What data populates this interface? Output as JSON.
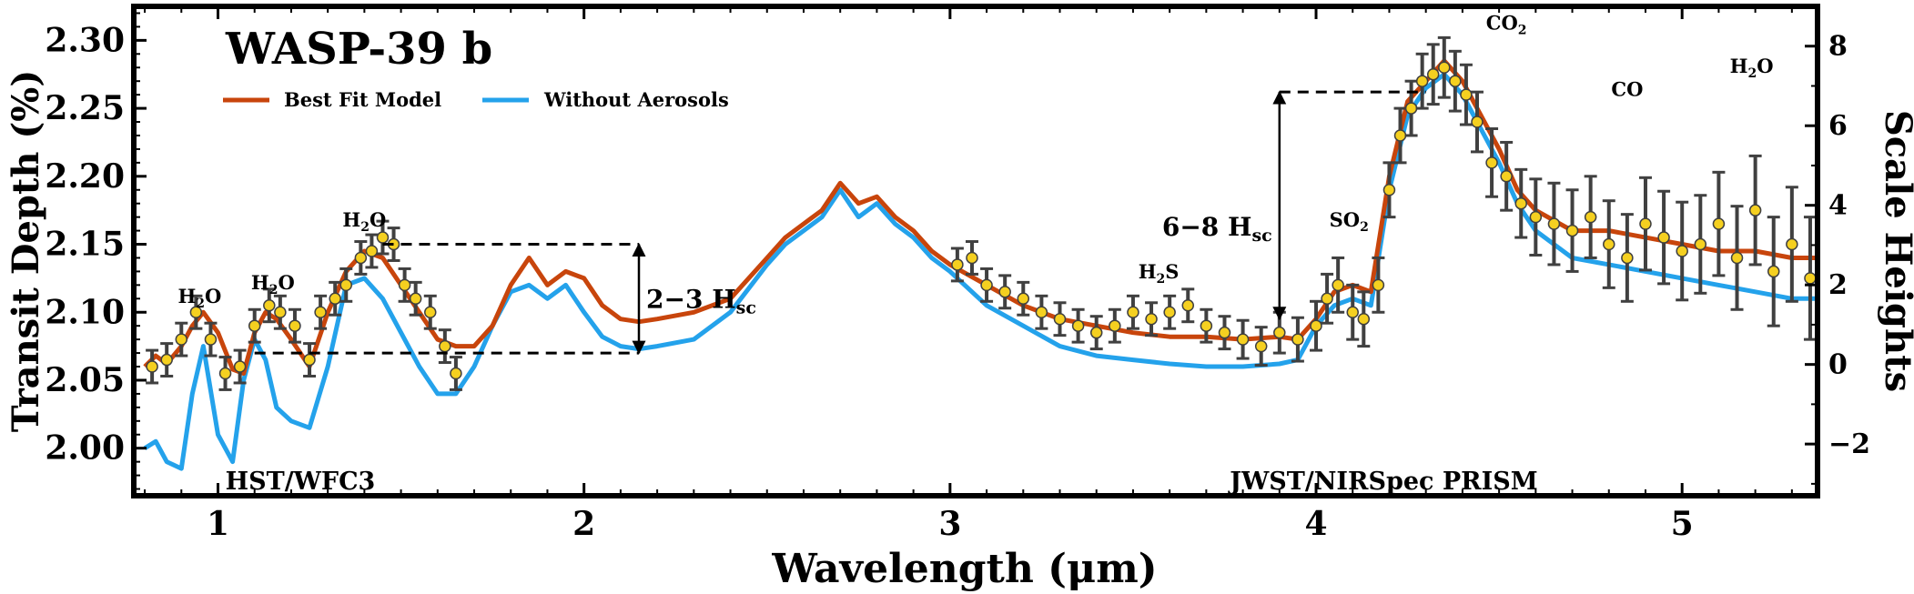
{
  "chart_data": {
    "type": "line",
    "title": "WASP-39 b",
    "xlabel": "Wavelength (μm)",
    "ylabel": "Transit Depth (%)",
    "y2label": "Scale Heights",
    "xlim": [
      0.77,
      5.37
    ],
    "ylim": [
      1.965,
      2.325
    ],
    "y2lim": [
      -3.3,
      9.0
    ],
    "x_ticks": [
      1,
      2,
      3,
      4,
      5
    ],
    "y_ticks": [
      2.0,
      2.05,
      2.1,
      2.15,
      2.2,
      2.25,
      2.3
    ],
    "y_tick_labels": [
      "2.00",
      "2.05",
      "2.10",
      "2.15",
      "2.20",
      "2.25",
      "2.30"
    ],
    "y2_ticks": [
      -2,
      0,
      2,
      4,
      6,
      8
    ],
    "y2_tick_labels": [
      "−2",
      "0",
      "2",
      "4",
      "6",
      "8"
    ],
    "legend": {
      "placement": "top-left"
    },
    "colors": {
      "best_fit": "#c8450c",
      "no_aerosols": "#24a2eb",
      "points": "#f5d020",
      "errorbars": "#404040"
    },
    "series": [
      {
        "name": "Best Fit Model",
        "x": [
          0.8,
          0.83,
          0.86,
          0.9,
          0.93,
          0.96,
          1.0,
          1.04,
          1.07,
          1.1,
          1.13,
          1.16,
          1.2,
          1.25,
          1.3,
          1.35,
          1.4,
          1.45,
          1.5,
          1.55,
          1.6,
          1.65,
          1.7,
          1.75,
          1.8,
          1.85,
          1.9,
          1.95,
          2.0,
          2.05,
          2.1,
          2.15,
          2.2,
          2.3,
          2.4,
          2.5,
          2.55,
          2.6,
          2.65,
          2.7,
          2.75,
          2.8,
          2.85,
          2.9,
          2.95,
          3.0,
          3.1,
          3.2,
          3.3,
          3.4,
          3.5,
          3.6,
          3.7,
          3.8,
          3.9,
          3.95,
          4.0,
          4.05,
          4.1,
          4.15,
          4.2,
          4.25,
          4.3,
          4.35,
          4.4,
          4.45,
          4.5,
          4.55,
          4.6,
          4.7,
          4.8,
          4.9,
          5.0,
          5.1,
          5.2,
          5.3,
          5.37
        ],
        "values": [
          2.06,
          2.068,
          2.062,
          2.075,
          2.09,
          2.1,
          2.085,
          2.058,
          2.055,
          2.085,
          2.1,
          2.095,
          2.08,
          2.06,
          2.1,
          2.13,
          2.145,
          2.14,
          2.12,
          2.1,
          2.08,
          2.075,
          2.075,
          2.09,
          2.12,
          2.14,
          2.12,
          2.13,
          2.125,
          2.105,
          2.095,
          2.093,
          2.095,
          2.1,
          2.11,
          2.14,
          2.155,
          2.165,
          2.175,
          2.195,
          2.18,
          2.185,
          2.17,
          2.16,
          2.145,
          2.135,
          2.12,
          2.105,
          2.095,
          2.09,
          2.085,
          2.082,
          2.082,
          2.08,
          2.082,
          2.08,
          2.095,
          2.115,
          2.12,
          2.115,
          2.2,
          2.255,
          2.27,
          2.285,
          2.27,
          2.245,
          2.22,
          2.19,
          2.175,
          2.16,
          2.16,
          2.155,
          2.15,
          2.145,
          2.145,
          2.14,
          2.14
        ]
      },
      {
        "name": "Without Aerosols",
        "x": [
          0.8,
          0.83,
          0.86,
          0.9,
          0.93,
          0.96,
          1.0,
          1.04,
          1.07,
          1.1,
          1.13,
          1.16,
          1.2,
          1.25,
          1.3,
          1.35,
          1.4,
          1.45,
          1.5,
          1.55,
          1.6,
          1.65,
          1.7,
          1.75,
          1.8,
          1.85,
          1.9,
          1.95,
          2.0,
          2.05,
          2.1,
          2.15,
          2.2,
          2.3,
          2.4,
          2.5,
          2.55,
          2.6,
          2.65,
          2.7,
          2.75,
          2.8,
          2.85,
          2.9,
          2.95,
          3.0,
          3.1,
          3.2,
          3.3,
          3.4,
          3.5,
          3.6,
          3.7,
          3.8,
          3.9,
          3.95,
          4.0,
          4.05,
          4.1,
          4.15,
          4.2,
          4.25,
          4.3,
          4.35,
          4.4,
          4.45,
          4.5,
          4.55,
          4.6,
          4.7,
          4.8,
          4.9,
          5.0,
          5.1,
          5.2,
          5.3,
          5.37
        ],
        "values": [
          2.0,
          2.005,
          1.99,
          1.985,
          2.04,
          2.075,
          2.01,
          1.99,
          2.05,
          2.08,
          2.065,
          2.03,
          2.02,
          2.015,
          2.06,
          2.12,
          2.125,
          2.11,
          2.085,
          2.06,
          2.04,
          2.04,
          2.06,
          2.09,
          2.115,
          2.12,
          2.11,
          2.12,
          2.1,
          2.082,
          2.075,
          2.073,
          2.075,
          2.08,
          2.1,
          2.135,
          2.15,
          2.16,
          2.17,
          2.19,
          2.17,
          2.18,
          2.165,
          2.155,
          2.14,
          2.13,
          2.105,
          2.09,
          2.075,
          2.068,
          2.065,
          2.062,
          2.06,
          2.06,
          2.062,
          2.065,
          2.09,
          2.105,
          2.11,
          2.105,
          2.19,
          2.245,
          2.265,
          2.275,
          2.26,
          2.235,
          2.21,
          2.18,
          2.16,
          2.14,
          2.135,
          2.13,
          2.125,
          2.12,
          2.115,
          2.11,
          2.11
        ]
      },
      {
        "name": "HST/WFC3",
        "type": "scatter",
        "x": [
          0.82,
          0.86,
          0.9,
          0.94,
          0.98,
          1.02,
          1.06,
          1.1,
          1.14,
          1.17,
          1.21,
          1.25,
          1.28,
          1.32,
          1.35,
          1.39,
          1.42,
          1.45,
          1.48,
          1.51,
          1.54,
          1.58,
          1.62,
          1.65
        ],
        "values": [
          2.06,
          2.065,
          2.08,
          2.1,
          2.08,
          2.055,
          2.06,
          2.09,
          2.105,
          2.1,
          2.09,
          2.065,
          2.1,
          2.11,
          2.12,
          2.14,
          2.145,
          2.155,
          2.15,
          2.12,
          2.11,
          2.1,
          2.075,
          2.055
        ],
        "errors": [
          0.012,
          0.012,
          0.012,
          0.012,
          0.012,
          0.012,
          0.012,
          0.012,
          0.012,
          0.012,
          0.012,
          0.012,
          0.012,
          0.012,
          0.012,
          0.012,
          0.012,
          0.012,
          0.012,
          0.012,
          0.012,
          0.012,
          0.012,
          0.012
        ]
      },
      {
        "name": "JWST/NIRSpec PRISM",
        "type": "scatter",
        "x": [
          3.02,
          3.06,
          3.1,
          3.15,
          3.2,
          3.25,
          3.3,
          3.35,
          3.4,
          3.45,
          3.5,
          3.55,
          3.6,
          3.65,
          3.7,
          3.75,
          3.8,
          3.85,
          3.9,
          3.95,
          4.0,
          4.03,
          4.06,
          4.1,
          4.13,
          4.17,
          4.2,
          4.23,
          4.26,
          4.29,
          4.32,
          4.35,
          4.38,
          4.41,
          4.44,
          4.48,
          4.52,
          4.56,
          4.6,
          4.65,
          4.7,
          4.75,
          4.8,
          4.85,
          4.9,
          4.95,
          5.0,
          5.05,
          5.1,
          5.15,
          5.2,
          5.25,
          5.3,
          5.35
        ],
        "values": [
          2.135,
          2.14,
          2.12,
          2.115,
          2.11,
          2.1,
          2.095,
          2.09,
          2.085,
          2.09,
          2.1,
          2.095,
          2.1,
          2.105,
          2.09,
          2.085,
          2.08,
          2.075,
          2.085,
          2.08,
          2.09,
          2.11,
          2.12,
          2.1,
          2.095,
          2.12,
          2.19,
          2.23,
          2.25,
          2.27,
          2.275,
          2.28,
          2.27,
          2.26,
          2.24,
          2.21,
          2.2,
          2.18,
          2.17,
          2.165,
          2.16,
          2.17,
          2.15,
          2.14,
          2.165,
          2.155,
          2.145,
          2.15,
          2.165,
          2.14,
          2.175,
          2.13,
          2.15,
          2.125
        ],
        "errors": [
          0.012,
          0.012,
          0.012,
          0.012,
          0.012,
          0.012,
          0.012,
          0.012,
          0.012,
          0.012,
          0.012,
          0.012,
          0.012,
          0.012,
          0.012,
          0.012,
          0.014,
          0.014,
          0.015,
          0.016,
          0.018,
          0.018,
          0.02,
          0.02,
          0.02,
          0.02,
          0.02,
          0.02,
          0.02,
          0.02,
          0.022,
          0.022,
          0.022,
          0.022,
          0.022,
          0.025,
          0.025,
          0.025,
          0.028,
          0.03,
          0.03,
          0.03,
          0.032,
          0.032,
          0.034,
          0.034,
          0.036,
          0.036,
          0.038,
          0.038,
          0.04,
          0.04,
          0.042,
          0.045
        ]
      }
    ],
    "annotations": {
      "molecules": [
        {
          "main": "H",
          "sub": "2",
          "tail": "O",
          "x": 0.95,
          "y": 2.107
        },
        {
          "main": "H",
          "sub": "2",
          "tail": "O",
          "x": 1.15,
          "y": 2.117
        },
        {
          "main": "H",
          "sub": "2",
          "tail": "O",
          "x": 1.4,
          "y": 2.163
        },
        {
          "main": "H",
          "sub": "2",
          "tail": "S",
          "x": 3.57,
          "y": 2.125
        },
        {
          "main": "SO",
          "sub": "2",
          "tail": "",
          "x": 4.09,
          "y": 2.163
        },
        {
          "main": "CO",
          "sub": "2",
          "tail": "",
          "x": 4.52,
          "y": 2.308
        },
        {
          "main": "CO",
          "sub": "",
          "tail": "",
          "x": 4.85,
          "y": 2.259
        },
        {
          "main": "H",
          "sub": "2",
          "tail": "O",
          "x": 5.19,
          "y": 2.276
        }
      ],
      "scale_boxes": [
        {
          "main": "2−3 H",
          "sub": "sc",
          "x_start": 1.45,
          "x_arrow": 2.15,
          "y_low": 2.07,
          "y_high": 2.15,
          "label_x": 2.17,
          "label_y": 2.11
        },
        {
          "main": "6−8 H",
          "sub": "sc",
          "x_arrow": 3.9,
          "x_end": 4.3,
          "y_low": 2.095,
          "y_high": 2.262,
          "label_x": 3.88,
          "label_y": 2.163
        }
      ],
      "instruments": [
        {
          "label": "HST/WFC3",
          "x_start": 0.8,
          "x_end": 1.65,
          "y": 1.975
        },
        {
          "label": "JWST/NIRSpec PRISM",
          "x_start": 3.0,
          "x_end": 5.37,
          "y": 1.975
        }
      ]
    }
  }
}
